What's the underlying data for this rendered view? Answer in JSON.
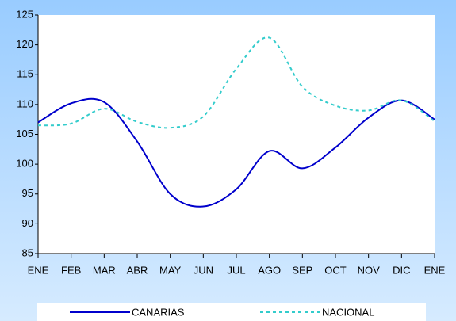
{
  "chart_data": {
    "type": "line",
    "categories": [
      "ENE",
      "FEB",
      "MAR",
      "ABR",
      "MAY",
      "JUN",
      "JUL",
      "AGO",
      "SEP",
      "OCT",
      "NOV",
      "DIC",
      "ENE"
    ],
    "series": [
      {
        "name": "CANARIAS",
        "color": "#0000cc",
        "dash": false,
        "values": [
          107.0,
          110.2,
          110.4,
          103.8,
          95.0,
          92.9,
          95.8,
          102.2,
          99.3,
          102.8,
          107.8,
          110.7,
          107.5
        ]
      },
      {
        "name": "NACIONAL",
        "color": "#33cccc",
        "dash": true,
        "values": [
          106.5,
          106.8,
          109.3,
          107.1,
          106.1,
          108.0,
          116.0,
          121.2,
          113.0,
          109.8,
          109.0,
          110.7,
          107.2
        ]
      }
    ],
    "ylim": [
      85,
      125
    ],
    "yticks": [
      85,
      90,
      95,
      100,
      105,
      110,
      115,
      120,
      125
    ],
    "smooth": true,
    "grid": false,
    "legend": "bottom"
  }
}
